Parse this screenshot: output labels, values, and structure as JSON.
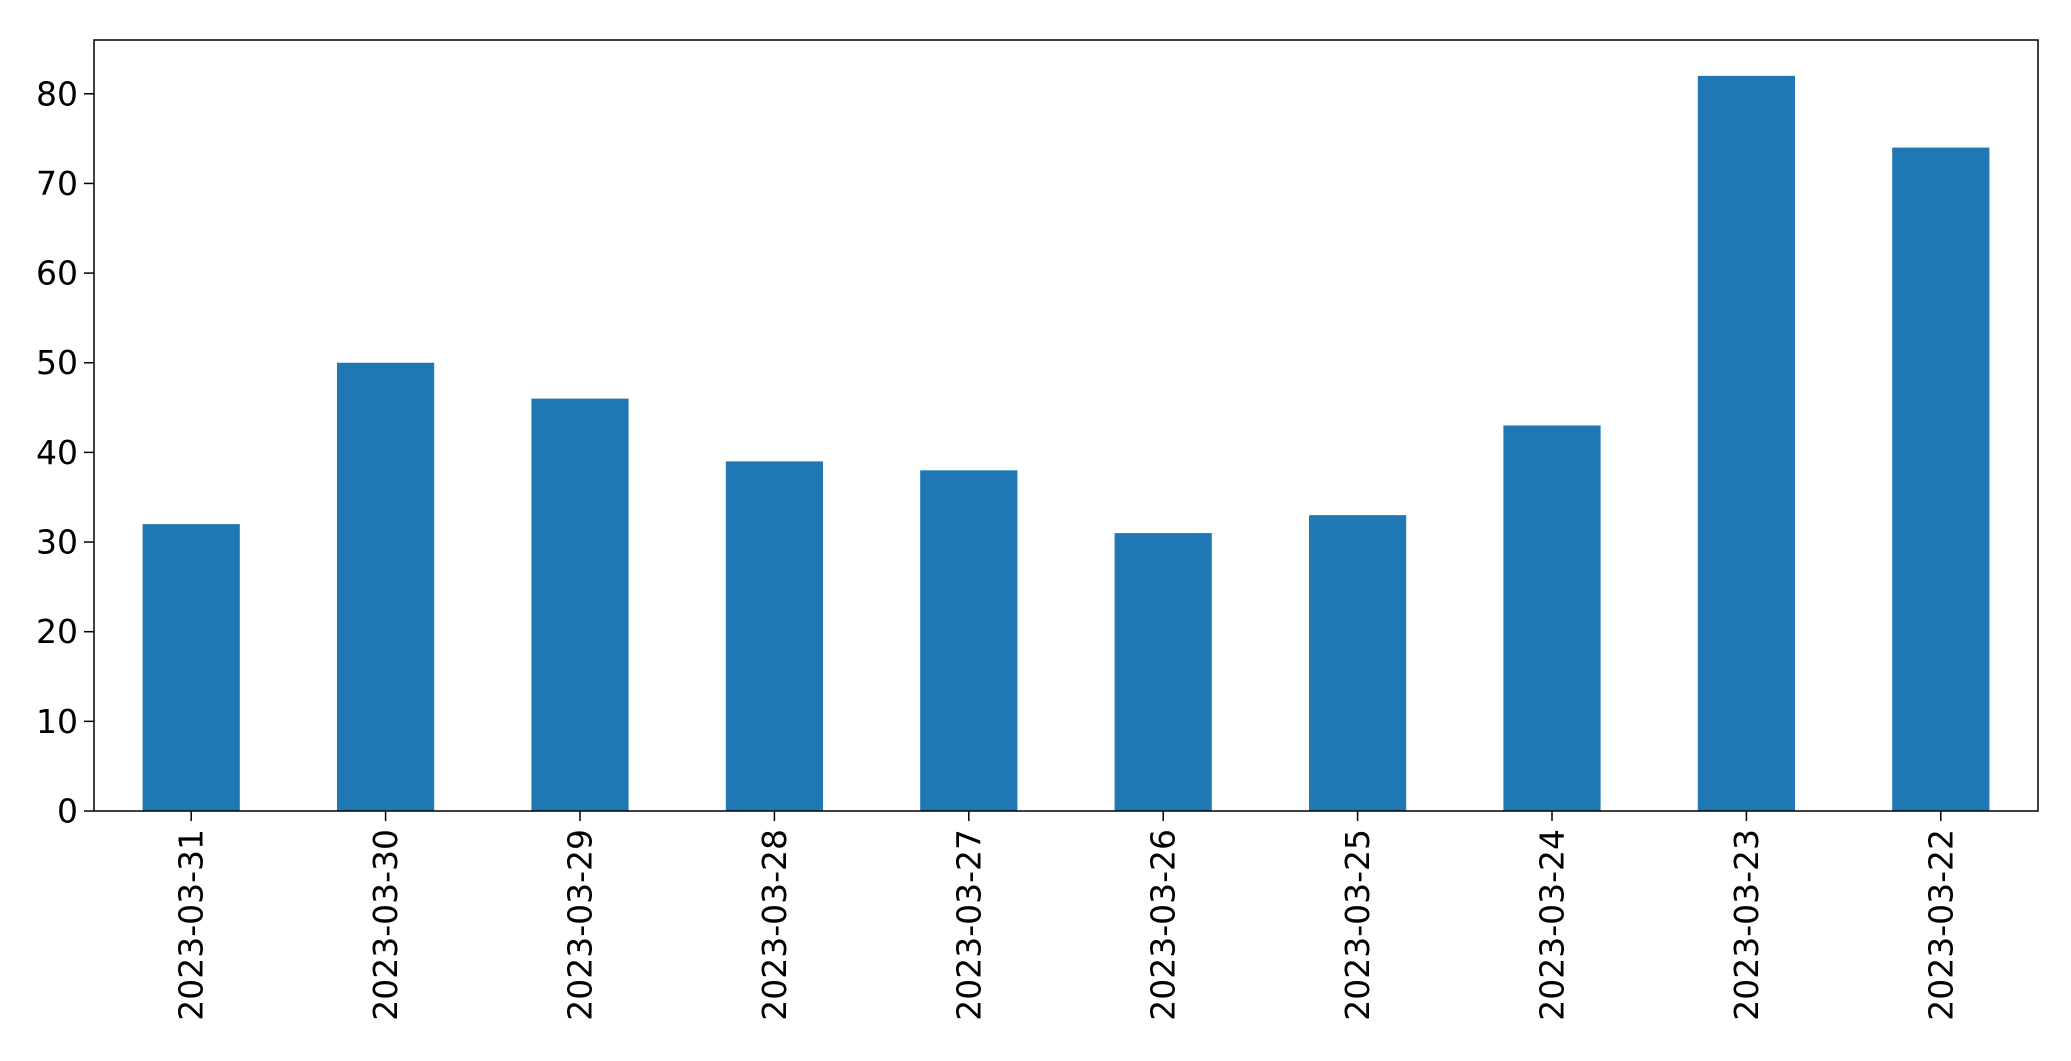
{
  "chart_data": {
    "type": "bar",
    "categories": [
      "2023-03-31",
      "2023-03-30",
      "2023-03-29",
      "2023-03-28",
      "2023-03-27",
      "2023-03-26",
      "2023-03-25",
      "2023-03-24",
      "2023-03-23",
      "2023-03-22"
    ],
    "values": [
      32,
      50,
      46,
      39,
      38,
      31,
      33,
      43,
      82,
      74
    ],
    "title": "",
    "xlabel": "",
    "ylabel": "",
    "ylim": [
      0,
      86
    ],
    "yticks": [
      0,
      10,
      20,
      30,
      40,
      50,
      60,
      70,
      80
    ],
    "x_tick_rotation": 90,
    "grid": false,
    "legend": "none",
    "bar_color": "#1f77b4"
  }
}
